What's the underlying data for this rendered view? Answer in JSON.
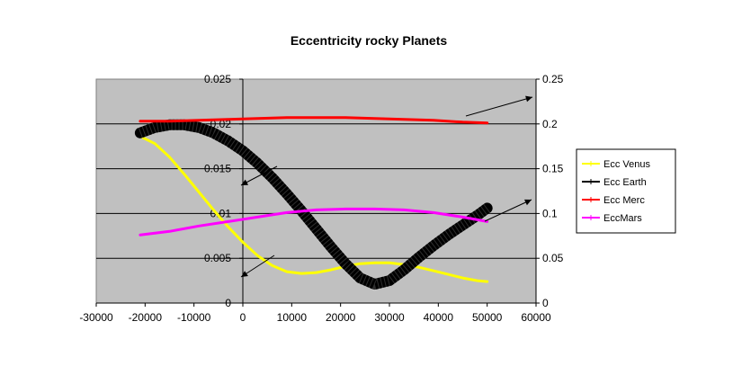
{
  "chart_data": {
    "type": "line",
    "title": "Eccentricity rocky Planets",
    "xlabel": "",
    "ylabel": "",
    "xlim": [
      -30000,
      60000
    ],
    "xticks": [
      "-30000",
      "-20000",
      "-10000",
      "0",
      "10000",
      "20000",
      "30000",
      "40000",
      "50000",
      "60000"
    ],
    "ylim_left": [
      0,
      0.025
    ],
    "yticks_left": [
      "0",
      "0.005",
      "0.01",
      "0.015",
      "0.02",
      "0.025"
    ],
    "ylim_right": [
      0,
      0.25
    ],
    "yticks_right": [
      "0",
      "0.05",
      "0.1",
      "0.15",
      "0.2",
      "0.25"
    ],
    "grid": true,
    "plot_background": "#c0c0c0",
    "legend_position": "right",
    "series": [
      {
        "name": "Ecc Venus",
        "axis": "left",
        "color": "#ffff00",
        "x": [
          -21000,
          -18000,
          -15000,
          -12000,
          -9000,
          -6000,
          -3000,
          0,
          3000,
          6000,
          9000,
          12000,
          15000,
          18000,
          21000,
          24000,
          27000,
          30000,
          33000,
          36000,
          39000,
          42000,
          45000,
          48000,
          50000
        ],
        "y": [
          0.0186,
          0.0178,
          0.0163,
          0.0144,
          0.0124,
          0.0104,
          0.0085,
          0.0068,
          0.0053,
          0.0042,
          0.0035,
          0.0033,
          0.0034,
          0.0037,
          0.0041,
          0.0044,
          0.0045,
          0.0045,
          0.0043,
          0.004,
          0.0036,
          0.0032,
          0.0028,
          0.0025,
          0.0024
        ]
      },
      {
        "name": "Ecc Earth",
        "axis": "left",
        "color": "#000000",
        "x": [
          -21000,
          -18000,
          -15000,
          -12000,
          -9000,
          -6000,
          -3000,
          0,
          3000,
          6000,
          9000,
          12000,
          15000,
          18000,
          21000,
          24000,
          27000,
          30000,
          33000,
          36000,
          39000,
          42000,
          45000,
          48000,
          50000
        ],
        "y": [
          0.019,
          0.0196,
          0.0199,
          0.0199,
          0.0196,
          0.019,
          0.0181,
          0.017,
          0.0156,
          0.014,
          0.0122,
          0.0103,
          0.0083,
          0.0063,
          0.0044,
          0.0028,
          0.0021,
          0.0025,
          0.0037,
          0.0051,
          0.0064,
          0.0076,
          0.0087,
          0.0098,
          0.0106
        ]
      },
      {
        "name": "Ecc Merc",
        "axis": "right",
        "color": "#ff0000",
        "x": [
          -21000,
          -15000,
          -9000,
          -3000,
          3000,
          9000,
          15000,
          21000,
          27000,
          33000,
          39000,
          45000,
          50000
        ],
        "y": [
          0.203,
          0.203,
          0.204,
          0.205,
          0.206,
          0.207,
          0.207,
          0.207,
          0.206,
          0.205,
          0.204,
          0.202,
          0.201
        ]
      },
      {
        "name": "EccMars",
        "axis": "right",
        "color": "#ff00ff",
        "x": [
          -21000,
          -15000,
          -9000,
          -3000,
          3000,
          9000,
          15000,
          21000,
          27000,
          33000,
          39000,
          45000,
          50000
        ],
        "y": [
          0.076,
          0.08,
          0.086,
          0.091,
          0.096,
          0.101,
          0.104,
          0.105,
          0.105,
          0.104,
          0.101,
          0.096,
          0.091
        ]
      }
    ]
  }
}
